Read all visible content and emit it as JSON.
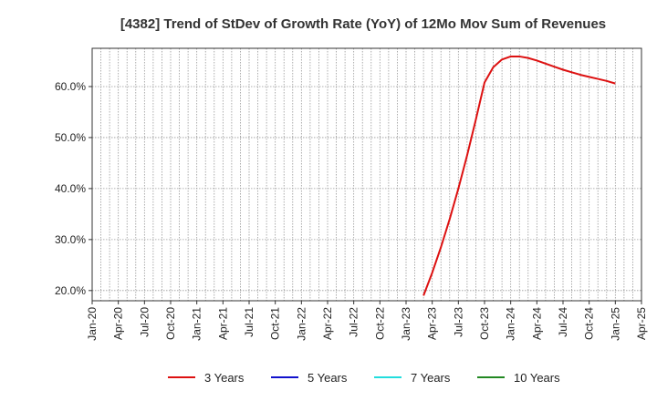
{
  "chart_data": {
    "type": "line",
    "title": "[4382]  Trend of StDev of Growth Rate (YoY) of 12Mo Mov Sum of Revenues",
    "xlabel": "",
    "ylabel": "",
    "x_ticks": [
      "Jan-20",
      "Apr-20",
      "Jul-20",
      "Oct-20",
      "Jan-21",
      "Apr-21",
      "Jul-21",
      "Oct-21",
      "Jan-22",
      "Apr-22",
      "Jul-22",
      "Oct-22",
      "Jan-23",
      "Apr-23",
      "Jul-23",
      "Oct-23",
      "Jan-24",
      "Apr-24",
      "Jul-24",
      "Oct-24",
      "Jan-25",
      "Apr-25"
    ],
    "y_ticks": [
      "20.0%",
      "30.0%",
      "40.0%",
      "50.0%",
      "60.0%"
    ],
    "y_tick_values": [
      20,
      30,
      40,
      50,
      60
    ],
    "ylim": [
      18,
      67.5
    ],
    "xlim": [
      "Jan-20",
      "Apr-25"
    ],
    "grid": true,
    "legend_position": "bottom",
    "series": [
      {
        "name": "3 Years",
        "color": "#dd1111",
        "points": [
          [
            "Mar-23",
            19.0
          ],
          [
            "Apr-23",
            23.5
          ],
          [
            "May-23",
            28.5
          ],
          [
            "Jun-23",
            34.0
          ],
          [
            "Jul-23",
            40.0
          ],
          [
            "Aug-23",
            46.5
          ],
          [
            "Sep-23",
            53.5
          ],
          [
            "Oct-23",
            60.8
          ],
          [
            "Nov-23",
            63.8
          ],
          [
            "Dec-23",
            65.3
          ],
          [
            "Jan-24",
            65.9
          ],
          [
            "Feb-24",
            65.9
          ],
          [
            "Mar-24",
            65.6
          ],
          [
            "Apr-24",
            65.1
          ],
          [
            "May-24",
            64.5
          ],
          [
            "Jun-24",
            63.9
          ],
          [
            "Jul-24",
            63.3
          ],
          [
            "Aug-24",
            62.8
          ],
          [
            "Sep-24",
            62.3
          ],
          [
            "Oct-24",
            61.9
          ],
          [
            "Nov-24",
            61.5
          ],
          [
            "Dec-24",
            61.1
          ],
          [
            "Jan-25",
            60.6
          ]
        ]
      },
      {
        "name": "5 Years",
        "color": "#1111cc",
        "points": []
      },
      {
        "name": "7 Years",
        "color": "#22dddd",
        "points": []
      },
      {
        "name": "10 Years",
        "color": "#228822",
        "points": []
      }
    ]
  }
}
